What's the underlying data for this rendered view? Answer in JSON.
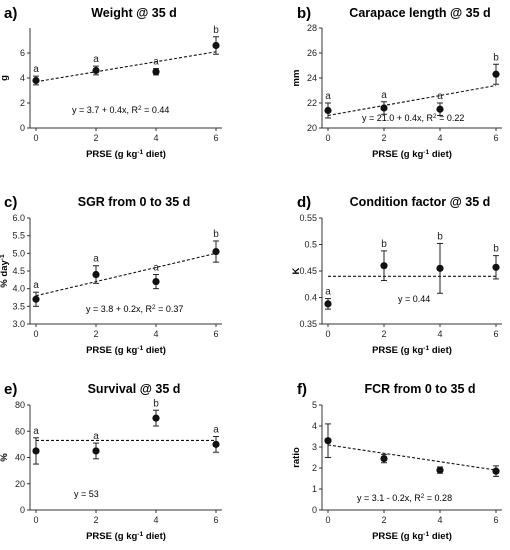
{
  "chart_data": [
    {
      "type": "scatter",
      "panel_letter": "a)",
      "title": "Weight @ 35 d",
      "xlabel": "PRSE (g kg-1 diet)",
      "ylabel": "g",
      "xlim": [
        0,
        6
      ],
      "ylim": [
        0,
        8
      ],
      "xticks": [
        0,
        2,
        4,
        6
      ],
      "yticks": [
        0,
        2,
        4,
        6
      ],
      "x": [
        0,
        2,
        4,
        6
      ],
      "y": [
        3.8,
        4.6,
        4.5,
        6.6
      ],
      "err": [
        0.35,
        0.35,
        0.25,
        0.7
      ],
      "sig": [
        "a",
        "a",
        "a",
        "b"
      ],
      "fit": {
        "kind": "linear",
        "intercept": 3.7,
        "slope": 0.4
      },
      "equation": "y = 3.7 + 0.4x, R² = 0.44"
    },
    {
      "type": "scatter",
      "panel_letter": "b)",
      "title": "Carapace length @ 35 d",
      "xlabel": "PRSE (g kg-1 diet)",
      "ylabel": "mm",
      "xlim": [
        0,
        6
      ],
      "ylim": [
        20,
        28
      ],
      "xticks": [
        0,
        2,
        4,
        6
      ],
      "yticks": [
        20,
        22,
        24,
        26,
        28
      ],
      "x": [
        0,
        2,
        4,
        6
      ],
      "y": [
        21.4,
        21.6,
        21.5,
        24.3
      ],
      "err": [
        0.6,
        0.5,
        0.5,
        0.8
      ],
      "sig": [
        "a",
        "a",
        "a",
        "b"
      ],
      "fit": {
        "kind": "linear",
        "intercept": 21.0,
        "slope": 0.4
      },
      "equation": "y = 21.0 + 0.4x, R² = 0.22"
    },
    {
      "type": "scatter",
      "panel_letter": "c)",
      "title": "SGR from 0 to 35 d",
      "xlabel": "PRSE (g kg-1 diet)",
      "ylabel": "% day-1",
      "xlim": [
        0,
        6
      ],
      "ylim": [
        3.0,
        6.0
      ],
      "xticks": [
        0,
        2,
        4,
        6
      ],
      "yticks": [
        3.0,
        3.5,
        4.0,
        4.5,
        5.0,
        5.5,
        6.0
      ],
      "x": [
        0,
        2,
        4,
        6
      ],
      "y": [
        3.7,
        4.4,
        4.2,
        5.05
      ],
      "err": [
        0.2,
        0.25,
        0.2,
        0.3
      ],
      "sig": [
        "a",
        "a",
        "a",
        "b"
      ],
      "fit": {
        "kind": "linear",
        "intercept": 3.8,
        "slope": 0.2
      },
      "equation": "y = 3.8 + 0.2x, R² = 0.37"
    },
    {
      "type": "scatter",
      "panel_letter": "d)",
      "title": "Condition factor @ 35 d",
      "xlabel": "PRSE (g kg-1 diet)",
      "ylabel": "K",
      "xlim": [
        0,
        6
      ],
      "ylim": [
        0.35,
        0.55
      ],
      "xticks": [
        0,
        2,
        4,
        6
      ],
      "yticks": [
        0.35,
        0.4,
        0.45,
        0.5,
        0.55
      ],
      "x": [
        0,
        2,
        4,
        6
      ],
      "y": [
        0.388,
        0.46,
        0.455,
        0.457
      ],
      "err": [
        0.01,
        0.028,
        0.047,
        0.022
      ],
      "sig": [
        "a",
        "b",
        "b",
        "b"
      ],
      "fit": {
        "kind": "constant",
        "intercept": 0.44,
        "slope": 0
      },
      "equation": "y = 0.44"
    },
    {
      "type": "scatter",
      "panel_letter": "e)",
      "title": "Survival @ 35 d",
      "xlabel": "PRSE (g kg-1 diet)",
      "ylabel": "%",
      "xlim": [
        0,
        6
      ],
      "ylim": [
        0,
        80
      ],
      "xticks": [
        0,
        2,
        4,
        6
      ],
      "yticks": [
        0,
        20,
        40,
        60,
        80
      ],
      "x": [
        0,
        2,
        4,
        6
      ],
      "y": [
        45,
        45,
        70,
        50
      ],
      "err": [
        10,
        6,
        6,
        6
      ],
      "sig": [
        "a",
        "a",
        "b",
        "a"
      ],
      "fit": {
        "kind": "constant",
        "intercept": 53,
        "slope": 0
      },
      "equation": "y = 53"
    },
    {
      "type": "scatter",
      "panel_letter": "f)",
      "title": "FCR from 0 to 35 d",
      "xlabel": "PRSE (g kg-1 diet)",
      "ylabel": "ratio",
      "xlim": [
        0,
        6
      ],
      "ylim": [
        0,
        5
      ],
      "xticks": [
        0,
        2,
        4,
        6
      ],
      "yticks": [
        0,
        1,
        2,
        3,
        4,
        5
      ],
      "x": [
        0,
        2,
        4,
        6
      ],
      "y": [
        3.3,
        2.45,
        1.9,
        1.85
      ],
      "err": [
        0.8,
        0.2,
        0.15,
        0.25
      ],
      "sig": [],
      "fit": {
        "kind": "linear",
        "intercept": 3.1,
        "slope": -0.2
      },
      "equation": "y = 3.1 - 0.2x, R² = 0.28"
    }
  ]
}
